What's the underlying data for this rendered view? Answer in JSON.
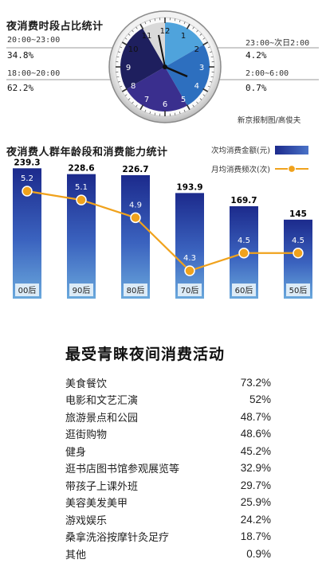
{
  "clock_section": {
    "title": "夜消费时段占比统计",
    "credit": "新京报制图/高俊夫",
    "clock_numbers": [
      "12",
      "1",
      "2",
      "3",
      "4",
      "5",
      "6",
      "7",
      "8",
      "9",
      "10",
      "11"
    ],
    "labels": [
      {
        "time": "20:00~23:00",
        "pct": "34.8%"
      },
      {
        "time": "18:00~20:00",
        "pct": "62.2%"
      },
      {
        "time": "23:00~次日2:00",
        "pct": "4.2%"
      },
      {
        "time": "2:00~6:00",
        "pct": "0.7%"
      }
    ]
  },
  "bar_section": {
    "title": "夜消费人群年龄段和消费能力统计",
    "legend_bar": "次均消费金额(元)",
    "legend_line": "月均消费频次(次)"
  },
  "activities": {
    "title": "最受青睐夜间消费活动",
    "items": [
      {
        "name": "美食餐饮",
        "value": "73.2%"
      },
      {
        "name": "电影和文艺汇演",
        "value": "52%"
      },
      {
        "name": "旅游景点和公园",
        "value": "48.7%"
      },
      {
        "name": "逛街购物",
        "value": "48.6%"
      },
      {
        "name": "健身",
        "value": "45.2%"
      },
      {
        "name": "逛书店图书馆参观展览等",
        "value": "32.9%"
      },
      {
        "name": "带孩子上课外班",
        "value": "29.7%"
      },
      {
        "name": "美容美发美甲",
        "value": "25.9%"
      },
      {
        "name": "游戏娱乐",
        "value": "24.2%"
      },
      {
        "name": "桑拿洗浴按摩针灸足疗",
        "value": "18.7%"
      },
      {
        "name": "其他",
        "value": "0.9%"
      }
    ]
  },
  "chart_data": [
    {
      "type": "pie",
      "title": "夜消费时段占比统计",
      "categories": [
        "18:00~20:00",
        "20:00~23:00",
        "23:00~次日2:00",
        "2:00~6:00"
      ],
      "values": [
        62.2,
        34.8,
        4.2,
        0.7
      ]
    },
    {
      "type": "bar",
      "title": "夜消费人群年龄段和消费能力统计",
      "categories": [
        "00后",
        "90后",
        "80后",
        "70后",
        "60后",
        "50后"
      ],
      "series": [
        {
          "name": "次均消费金额(元)",
          "type": "bar",
          "values": [
            239.3,
            228.6,
            226.7,
            193.9,
            169.7,
            145
          ]
        },
        {
          "name": "月均消费频次(次)",
          "type": "line",
          "values": [
            5.2,
            5.1,
            4.9,
            4.3,
            4.5,
            4.5
          ]
        }
      ],
      "colors": {
        "bar_top": "#1c2a8c",
        "bar_bottom": "#6aa8dc",
        "line": "#f0a21c"
      },
      "grid": false,
      "legend_position": "top-right"
    },
    {
      "type": "table",
      "title": "最受青睐夜间消费活动",
      "categories": [
        "美食餐饮",
        "电影和文艺汇演",
        "旅游景点和公园",
        "逛街购物",
        "健身",
        "逛书店图书馆参观展览等",
        "带孩子上课外班",
        "美容美发美甲",
        "游戏娱乐",
        "桑拿洗浴按摩针灸足疗",
        "其他"
      ],
      "values": [
        73.2,
        52,
        48.7,
        48.6,
        45.2,
        32.9,
        29.7,
        25.9,
        24.2,
        18.7,
        0.9
      ]
    }
  ]
}
